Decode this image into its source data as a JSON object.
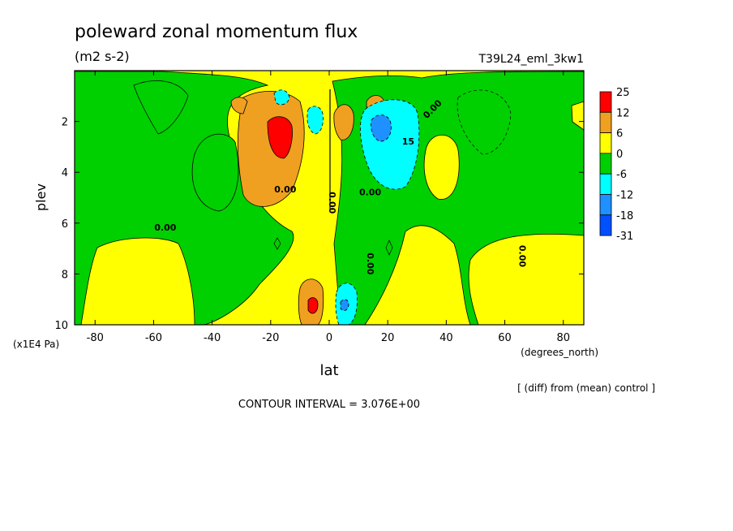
{
  "chart_data": {
    "type": "heatmap",
    "title": "poleward zonal momentum flux",
    "subtitle": "(m2 s-2)",
    "experiment": "T39L24_eml_3kw1",
    "xlabel": "lat",
    "xunits": "(degrees_north)",
    "ylabel": "plev",
    "yunits": "(x1E4 Pa)",
    "xlim": [
      -87,
      87
    ],
    "ylim": [
      10,
      0
    ],
    "x_ticks": [
      "-80",
      "-60",
      "-40",
      "-20",
      "0",
      "20",
      "40",
      "60",
      "80"
    ],
    "x_tick_values": [
      -80,
      -60,
      -40,
      -20,
      0,
      20,
      40,
      60,
      80
    ],
    "y_ticks": [
      "2",
      "4",
      "6",
      "8",
      "10"
    ],
    "y_tick_values": [
      2,
      4,
      6,
      8,
      10
    ],
    "note": "[ (diff) from (mean) control ]",
    "contour_interval": "CONTOUR INTERVAL = 3.076E+00",
    "legend": {
      "placement": "right",
      "labels": [
        "25",
        "12",
        "6",
        "0",
        "-6",
        "-12",
        "-18",
        "-31"
      ],
      "colors": [
        "#ff0000",
        "#f0a020",
        "#ffff00",
        "#00d000",
        "#00ffff",
        "#1e90ff",
        "#0050ff"
      ]
    },
    "contour_labels": [
      {
        "text": "0.00",
        "lat": -15,
        "plev": 4.8
      },
      {
        "text": "0.00",
        "lat": -56,
        "plev": 6.3
      },
      {
        "text": "0.00",
        "lat": 0,
        "plev": 5.2
      },
      {
        "text": "0.00",
        "lat": 14,
        "plev": 4.9
      },
      {
        "text": "0.00",
        "lat": 13,
        "plev": 7.6
      },
      {
        "text": "0.00",
        "lat": 36,
        "plev": 1.6
      },
      {
        "text": "0.00",
        "lat": 65,
        "plev": 7.3
      },
      {
        "text": "15",
        "lat": 27,
        "plev": 2.9
      }
    ]
  }
}
